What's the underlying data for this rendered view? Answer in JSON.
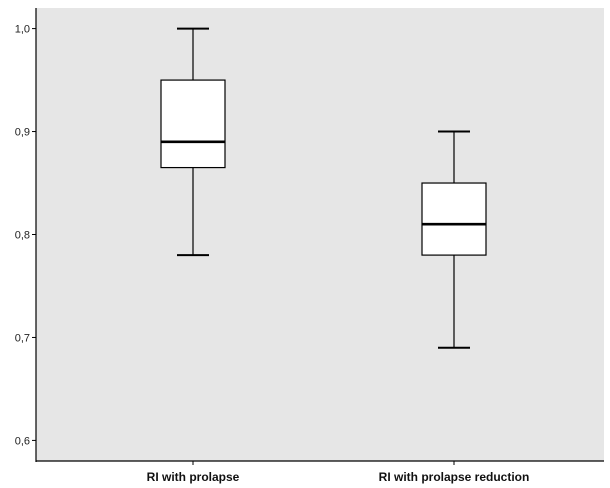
{
  "chart_data": {
    "type": "boxplot",
    "title": "",
    "xlabel": "",
    "ylabel": "",
    "ylim": [
      0.58,
      1.02
    ],
    "yticks": [
      {
        "value": 0.6,
        "label": "0,6"
      },
      {
        "value": 0.7,
        "label": "0,7"
      },
      {
        "value": 0.8,
        "label": "0,8"
      },
      {
        "value": 0.9,
        "label": "0,9"
      },
      {
        "value": 1.0,
        "label": "1,0"
      }
    ],
    "categories": [
      "RI with prolapse",
      "RI with prolapse reduction"
    ],
    "boxes": [
      {
        "min": 0.78,
        "q1": 0.865,
        "median": 0.89,
        "q3": 0.95,
        "max": 1.0
      },
      {
        "min": 0.69,
        "q1": 0.78,
        "median": 0.81,
        "q3": 0.85,
        "max": 0.9
      }
    ],
    "grid": false,
    "colors": {
      "plot_background": "#e6e6e6",
      "box_fill": "#ffffff",
      "stroke": "#000000"
    }
  }
}
